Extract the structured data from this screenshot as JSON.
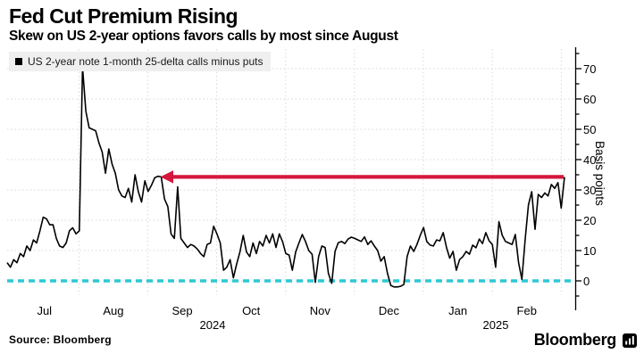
{
  "header": {
    "title": "Fed Cut Premium Rising",
    "subtitle": "Skew on US 2-year options favors calls by most since August"
  },
  "legend": {
    "swatch_color": "#000000",
    "label": "US 2-year note 1-month 25-delta calls minus puts"
  },
  "footer": {
    "source": "Source: Bloomberg",
    "brand": "Bloomberg",
    "brand_mark_icon": "bloomberg-terminal-icon"
  },
  "chart_data": {
    "type": "line",
    "title": "Fed Cut Premium Rising",
    "subtitle": "Skew on US 2-year options favors calls by most since August",
    "ylabel": "Basis points",
    "ylim": [
      -7,
      77
    ],
    "grid": true,
    "legend_position": "top-left",
    "x_range": [
      "2024-06-28",
      "2025-03-03"
    ],
    "x_axis": {
      "months": [
        "Jul",
        "Aug",
        "Sep",
        "Oct",
        "Nov",
        "Dec",
        "Jan",
        "Feb"
      ],
      "years": [
        "2024",
        "2025"
      ]
    },
    "y_axis": {
      "label": "Basis points",
      "ticks": [
        0,
        10,
        20,
        30,
        40,
        50,
        60,
        70
      ],
      "minor_step": 5
    },
    "colors": {
      "line": "#000000",
      "grid": "#d8d8d8",
      "axis": "#000000",
      "zero_line": "#2cc9d4",
      "arrow": "#d5173c"
    },
    "annotations": {
      "arrow": {
        "y_value": 34.3,
        "direction": "left",
        "color": "#d5173c"
      },
      "zero_line": {
        "y_value": 0,
        "style": "dashed",
        "color": "#2cc9d4"
      }
    },
    "series": [
      {
        "name": "US 2-year note 1-month 25-delta calls minus puts",
        "color": "#000000",
        "unit": "basis points",
        "values": [
          6,
          4.5,
          7,
          6,
          9,
          8,
          11.5,
          10,
          13.5,
          12.5,
          16.5,
          21,
          20.5,
          18.5,
          18.5,
          14,
          11.5,
          11,
          12.5,
          16.5,
          17.5,
          15.5,
          16.5,
          70.5,
          56,
          50.5,
          50,
          49.5,
          45.5,
          42.5,
          35.5,
          43.5,
          38.5,
          35.5,
          30,
          28,
          27.5,
          30.5,
          26,
          35,
          29.5,
          26,
          33,
          29.5,
          31.5,
          34,
          34.5,
          34.3,
          27,
          24.5,
          15.5,
          14,
          31,
          14,
          12.5,
          11,
          12,
          11.5,
          10.5,
          9,
          8,
          12,
          12.5,
          18,
          15.5,
          12.5,
          3.5,
          4.5,
          7,
          1,
          5.5,
          9.5,
          15,
          9.5,
          8,
          12.5,
          9,
          13,
          11.5,
          15,
          12.5,
          15.5,
          11,
          15.5,
          13,
          9,
          8.5,
          3.5,
          9.5,
          12.5,
          15.3,
          13,
          10,
          8.8,
          -0.5,
          8,
          11.5,
          11,
          2.4,
          -0.8,
          9.7,
          12.6,
          13,
          12.3,
          13.8,
          14.4,
          14,
          13.5,
          13,
          14.5,
          12,
          13.2,
          11.5,
          10,
          6.5,
          8,
          2.5,
          -1.5,
          -2,
          -2,
          -1.8,
          -1.2,
          8,
          11.5,
          9.7,
          12,
          15,
          17.6,
          13,
          11.8,
          11.5,
          13.5,
          13.2,
          15.9,
          11,
          7.5,
          9.7,
          3.5,
          7,
          8,
          9.7,
          8.8,
          11.8,
          10.9,
          13.8,
          12.3,
          15.9,
          13.2,
          12,
          4.5,
          19.5,
          15,
          13,
          12.5,
          12,
          15.3,
          6,
          0.5,
          13.8,
          25,
          29.4,
          17,
          28.5,
          27.5,
          29,
          28,
          31.8,
          30.5,
          32.4,
          24,
          34.3
        ]
      }
    ]
  }
}
